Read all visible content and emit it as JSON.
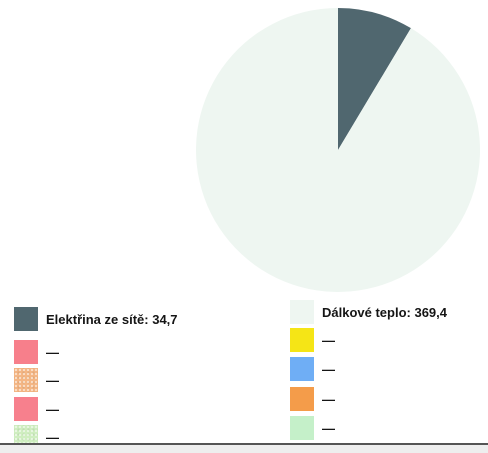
{
  "chart_data": {
    "type": "pie",
    "slices": [
      {
        "label": "Elektřina ze sítě",
        "value": 34.7,
        "value_text": "34,7",
        "color": "#50676f"
      },
      {
        "label": "Dálkové teplo",
        "value": 369.4,
        "value_text": "369,4",
        "color": "#eef6f1"
      }
    ],
    "legend": {
      "placement": "bottom",
      "items": [
        {
          "label": "Elektřina ze sítě: 34,7",
          "color": "#50676f",
          "pattern": false
        },
        {
          "label": "Dálkové teplo: 369,4",
          "color": "#eef6f1",
          "pattern": false
        },
        {
          "label": "—",
          "color": "#f77f8b",
          "pattern": false
        },
        {
          "label": "—",
          "color": "#f5e516",
          "pattern": false
        },
        {
          "label": "—",
          "color": "#f4b684",
          "pattern": true
        },
        {
          "label": "—",
          "color": "#6faef5",
          "pattern": false
        },
        {
          "label": "—",
          "color": "#f7808d",
          "pattern": false
        },
        {
          "label": "—",
          "color": "#f49c4a",
          "pattern": false
        },
        {
          "label": "—",
          "color": "#cfeec0",
          "pattern": true
        },
        {
          "label": "—",
          "color": "#c5f0c9",
          "pattern": false
        }
      ]
    }
  }
}
